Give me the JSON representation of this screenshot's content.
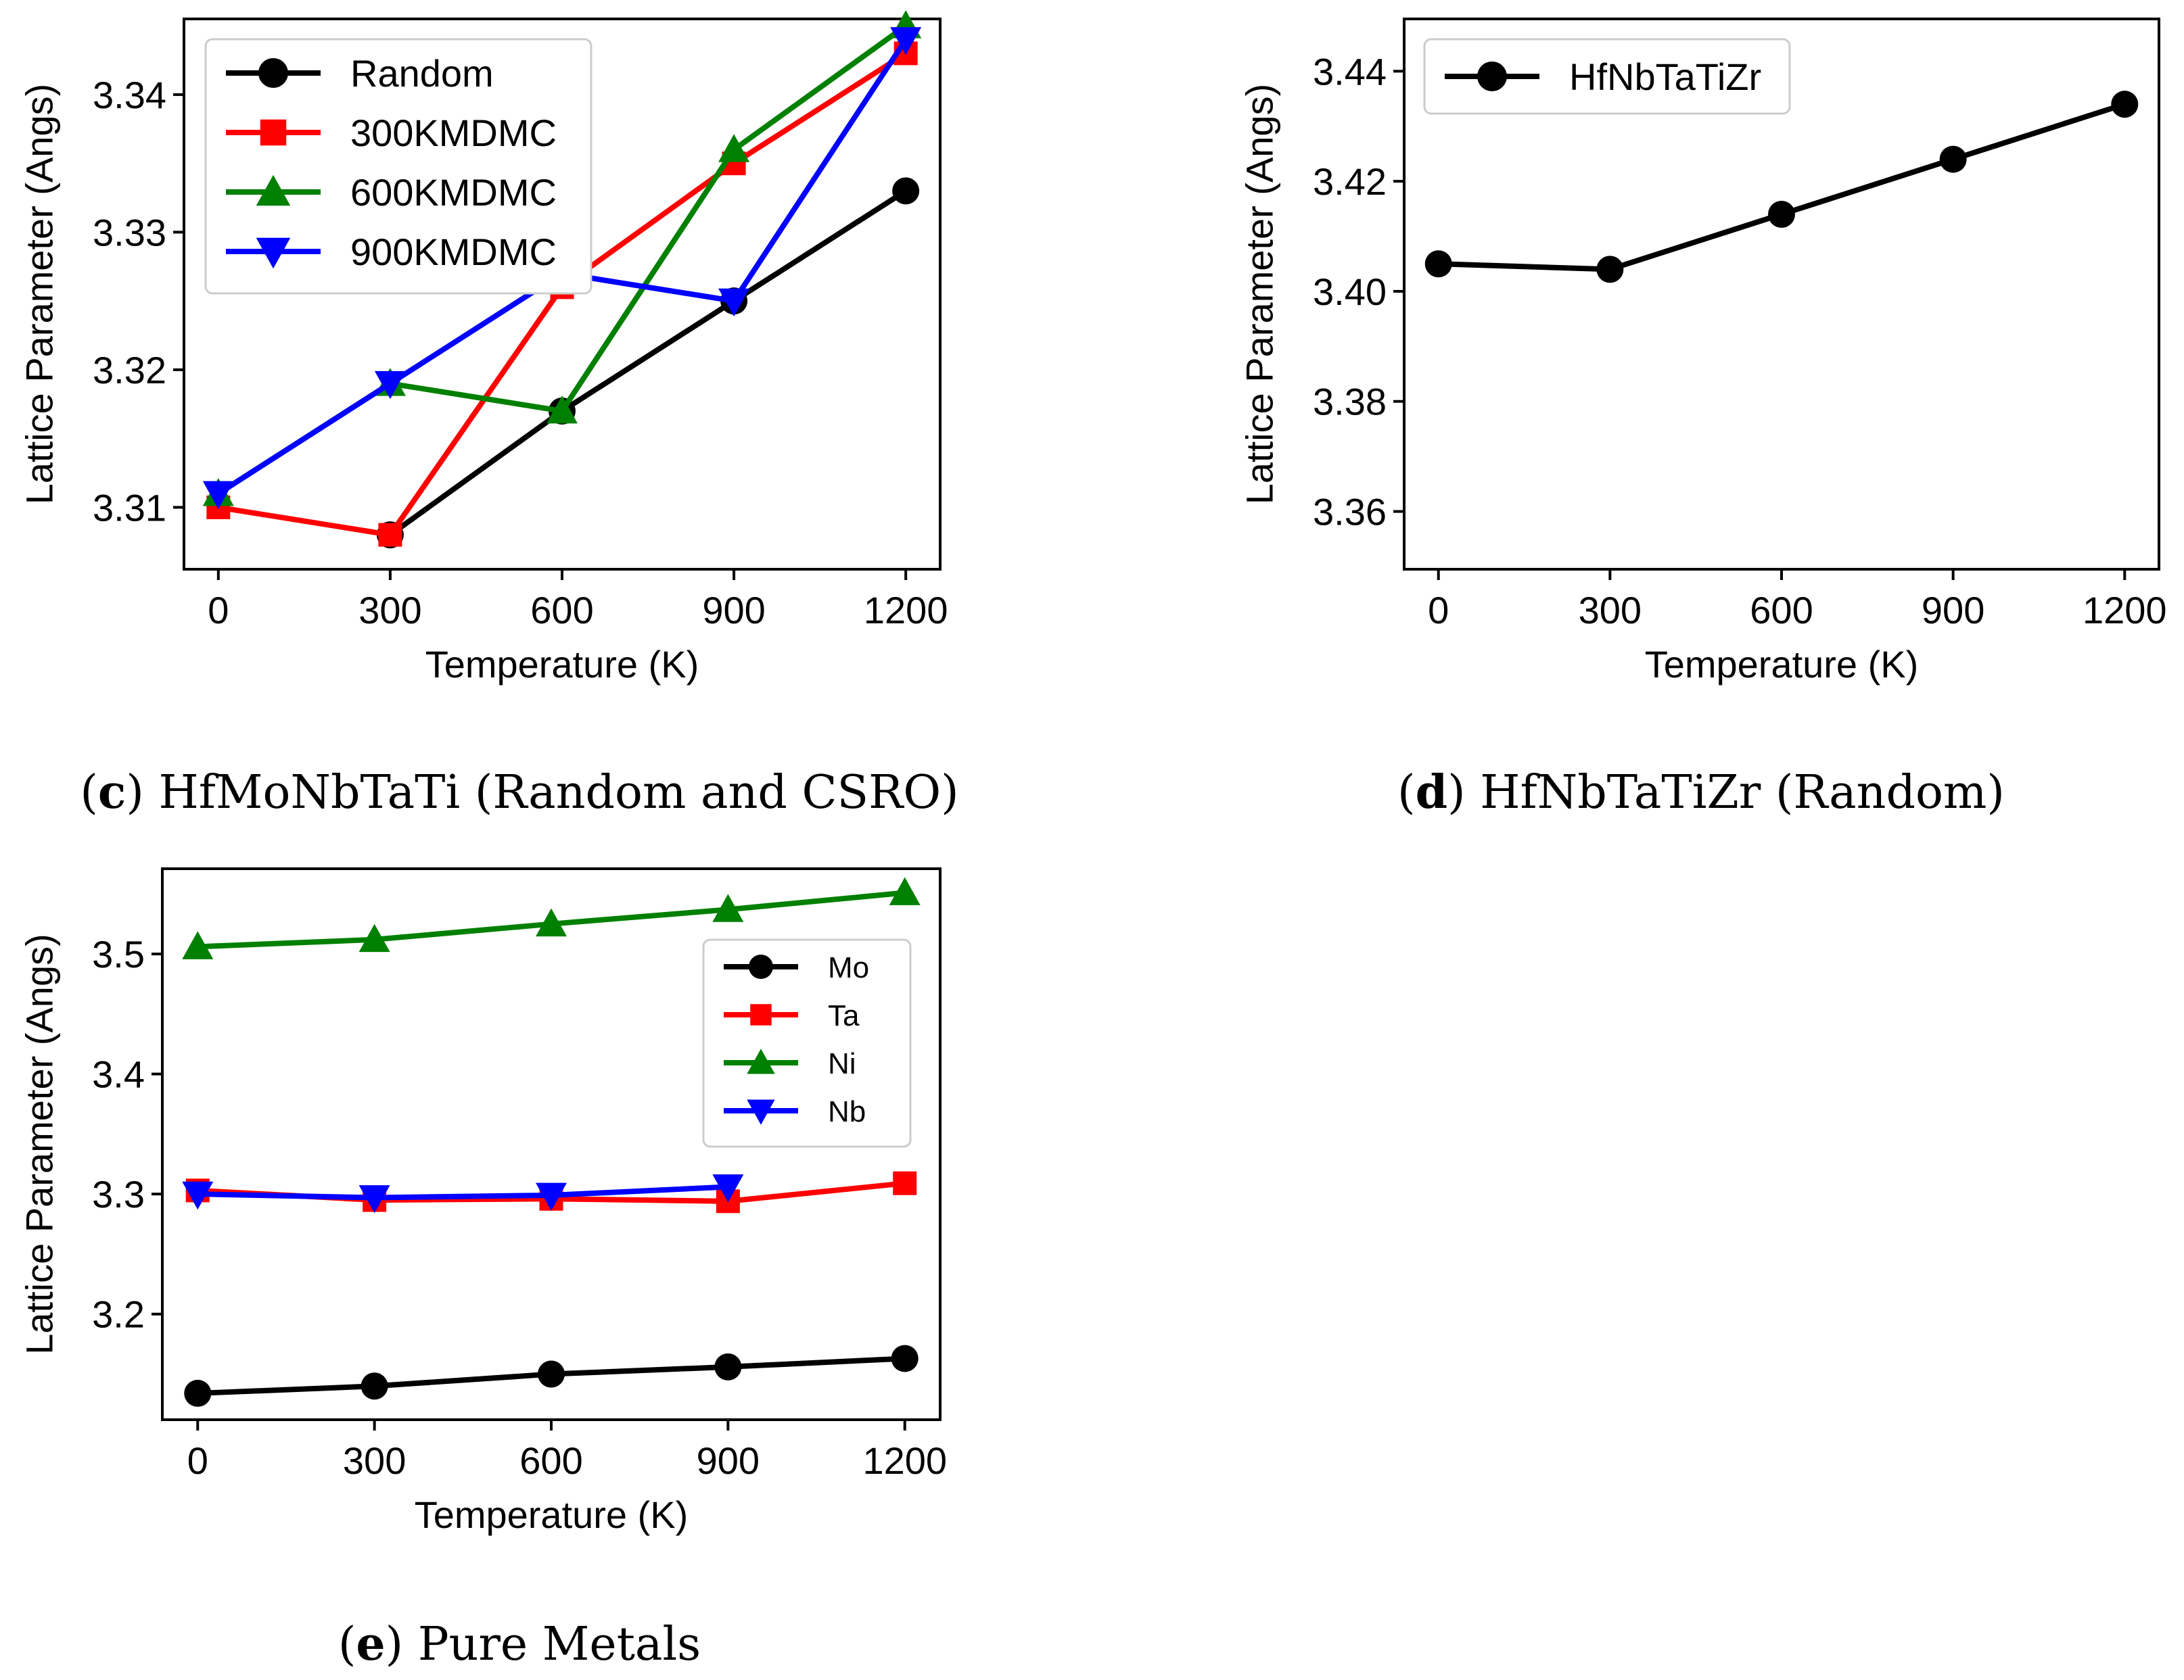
{
  "chart_data": [
    {
      "id": "c",
      "type": "line",
      "caption_letter": "c",
      "caption_text": " HfMoNbTaTi (Random and CSRO)",
      "xlabel": "Temperature (K)",
      "ylabel": "Lattice Parameter (Angs)",
      "x": [
        0,
        300,
        600,
        900,
        1200
      ],
      "xticks": [
        "0",
        "300",
        "600",
        "900",
        "1200"
      ],
      "xlim": [
        -60,
        1260
      ],
      "ylim": [
        3.3055,
        3.3455
      ],
      "yticks": [
        3.31,
        3.32,
        3.33,
        3.34
      ],
      "ytick_labels": [
        "3.31",
        "3.32",
        "3.33",
        "3.34"
      ],
      "legend": "top-left",
      "series": [
        {
          "name": "Random",
          "color": "#000000",
          "marker": "circle",
          "values": [
            null,
            3.308,
            3.317,
            3.325,
            3.333
          ]
        },
        {
          "name": "300KMDMC",
          "color": "#ff0000",
          "marker": "square",
          "values": [
            3.31,
            3.308,
            3.326,
            3.335,
            3.343
          ]
        },
        {
          "name": "600KMDMC",
          "color": "#008000",
          "marker": "triangle-up",
          "values": [
            3.311,
            3.319,
            3.317,
            3.336,
            3.345
          ]
        },
        {
          "name": "900KMDMC",
          "color": "#0000ff",
          "marker": "triangle-down",
          "values": [
            3.311,
            3.319,
            3.327,
            3.325,
            3.344
          ]
        }
      ]
    },
    {
      "id": "d",
      "type": "line",
      "caption_letter": "d",
      "caption_text": " HfNbTaTiZr (Random)",
      "xlabel": "Temperature (K)",
      "ylabel": "Lattice Parameter (Angs)",
      "x": [
        0,
        300,
        600,
        900,
        1200
      ],
      "xticks": [
        "0",
        "300",
        "600",
        "900",
        "1200"
      ],
      "xlim": [
        -60,
        1260
      ],
      "ylim": [
        3.3495,
        3.4495
      ],
      "yticks": [
        3.36,
        3.38,
        3.4,
        3.42,
        3.44
      ],
      "ytick_labels": [
        "3.36",
        "3.38",
        "3.40",
        "3.42",
        "3.44"
      ],
      "legend": "top-left",
      "series": [
        {
          "name": "HfNbTaTiZr",
          "color": "#000000",
          "marker": "circle",
          "values": [
            3.405,
            3.404,
            3.414,
            3.424,
            3.434
          ]
        }
      ]
    },
    {
      "id": "e",
      "type": "line",
      "caption_letter": "e",
      "caption_text": " Pure Metals",
      "xlabel": "Temperature (K)",
      "ylabel": "Lattice Parameter (Angs)",
      "x": [
        0,
        300,
        600,
        900,
        1200
      ],
      "xticks": [
        "0",
        "300",
        "600",
        "900",
        "1200"
      ],
      "xlim": [
        -60,
        1260
      ],
      "ylim": [
        3.112,
        3.571
      ],
      "yticks": [
        3.2,
        3.3,
        3.4,
        3.5
      ],
      "ytick_labels": [
        "3.2",
        "3.3",
        "3.4",
        "3.5"
      ],
      "legend": "upper-right",
      "series": [
        {
          "name": "Mo",
          "color": "#000000",
          "marker": "circle",
          "values": [
            3.134,
            3.14,
            3.15,
            3.156,
            3.163
          ]
        },
        {
          "name": "Ta",
          "color": "#ff0000",
          "marker": "square",
          "values": [
            3.303,
            3.295,
            3.296,
            3.294,
            3.309
          ]
        },
        {
          "name": "Ni",
          "color": "#008000",
          "marker": "triangle-up",
          "values": [
            3.506,
            3.512,
            3.525,
            3.537,
            3.551
          ]
        },
        {
          "name": "Nb",
          "color": "#0000ff",
          "marker": "triangle-down",
          "values": [
            3.3,
            3.297,
            3.299,
            3.306,
            null
          ]
        }
      ]
    }
  ]
}
